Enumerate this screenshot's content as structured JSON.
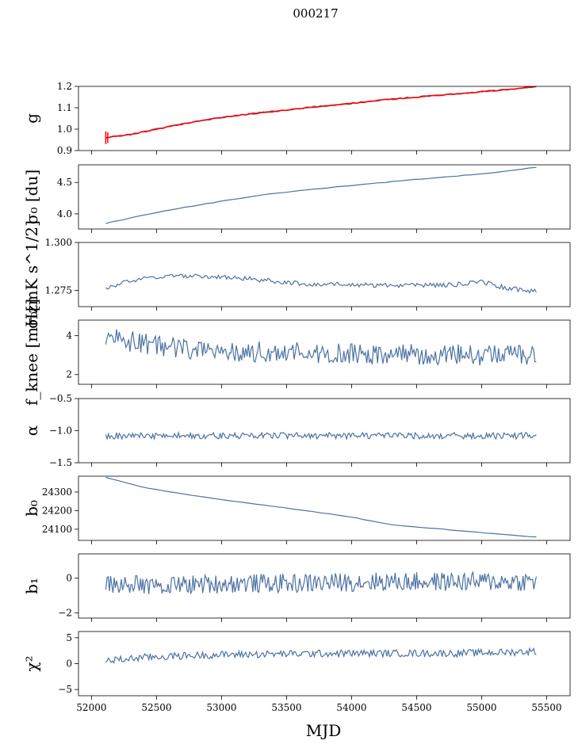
{
  "figure": {
    "title": "000217",
    "xlabel": "MJD"
  },
  "chart_data": [
    {
      "type": "line",
      "ylabel": "g",
      "xlim": [
        51900,
        55680
      ],
      "ylim": [
        0.9,
        1.2
      ],
      "yticks": [
        "0.9",
        "1.0",
        "1.1",
        "1.2"
      ],
      "ytick_values": [
        0.9,
        1.0,
        1.1,
        1.2
      ],
      "series": [
        {
          "color": "#4c72a4",
          "x": [
            52110,
            52300,
            52500,
            52750,
            53000,
            53200,
            53500,
            53800,
            54000,
            54300,
            54600,
            54900,
            55200,
            55420
          ],
          "y": [
            0.96,
            0.975,
            1.0,
            1.03,
            1.055,
            1.07,
            1.09,
            1.11,
            1.12,
            1.14,
            1.155,
            1.17,
            1.185,
            1.2
          ]
        },
        {
          "color": "#ff0000",
          "x": [
            52110,
            52300,
            52500,
            52750,
            53000,
            53200,
            53500,
            53800,
            54000,
            54300,
            54600,
            54900,
            55200,
            55420
          ],
          "y": [
            0.96,
            0.975,
            1.0,
            1.03,
            1.055,
            1.07,
            1.09,
            1.11,
            1.12,
            1.14,
            1.155,
            1.17,
            1.185,
            1.2
          ]
        }
      ]
    },
    {
      "type": "line",
      "ylabel": "σ₀ [du]",
      "xlim": [
        51900,
        55680
      ],
      "ylim": [
        3.76,
        4.78
      ],
      "yticks": [
        "4.0",
        "4.5"
      ],
      "ytick_values": [
        4.0,
        4.5
      ],
      "series": [
        {
          "color": "#4c72a4",
          "x": [
            52110,
            52400,
            52700,
            53000,
            53300,
            53600,
            54000,
            54400,
            54800,
            55100,
            55420
          ],
          "y": [
            3.85,
            3.98,
            4.1,
            4.2,
            4.3,
            4.37,
            4.45,
            4.53,
            4.6,
            4.66,
            4.74
          ]
        }
      ]
    },
    {
      "type": "line",
      "ylabel": "σ₀[mK s^1/2]",
      "xlim": [
        51900,
        55680
      ],
      "ylim": [
        1.2665,
        1.3
      ],
      "yticks": [
        "1.275",
        "1.300"
      ],
      "ytick_values": [
        1.275,
        1.3
      ],
      "series": [
        {
          "color": "#4c72a4",
          "x": [
            52110,
            52300,
            52600,
            53000,
            53300,
            53600,
            54000,
            54400,
            54800,
            55000,
            55200,
            55420
          ],
          "y": [
            1.276,
            1.28,
            1.2825,
            1.282,
            1.2805,
            1.2785,
            1.278,
            1.2775,
            1.278,
            1.2795,
            1.276,
            1.2745
          ]
        }
      ]
    },
    {
      "type": "line",
      "ylabel": "f_knee [mHz]",
      "xlim": [
        51900,
        55680
      ],
      "ylim": [
        1.5,
        4.8
      ],
      "yticks": [
        "2",
        "4"
      ],
      "ytick_values": [
        2,
        4
      ],
      "series": [
        {
          "color": "#4c72a4",
          "x": [
            52110,
            52300,
            52600,
            53000,
            53400,
            53800,
            54200,
            54600,
            55000,
            55420
          ],
          "y": [
            3.9,
            3.7,
            3.4,
            3.25,
            3.15,
            3.1,
            3.05,
            3.0,
            3.0,
            2.95
          ]
        }
      ]
    },
    {
      "type": "line",
      "ylabel": "α",
      "xlim": [
        51900,
        55680
      ],
      "ylim": [
        -1.5,
        -0.5
      ],
      "yticks": [
        "−1.5",
        "−1.0",
        "−0.5"
      ],
      "ytick_values": [
        -1.5,
        -1.0,
        -0.5
      ],
      "series": [
        {
          "color": "#4c72a4",
          "x": [
            52110,
            52600,
            53100,
            53600,
            54100,
            54600,
            55100,
            55420
          ],
          "y": [
            -1.08,
            -1.08,
            -1.08,
            -1.08,
            -1.08,
            -1.08,
            -1.08,
            -1.08
          ]
        }
      ]
    },
    {
      "type": "line",
      "ylabel": "b₀",
      "xlim": [
        51900,
        55680
      ],
      "ylim": [
        24040,
        24385
      ],
      "yticks": [
        "24100",
        "24200",
        "24300"
      ],
      "ytick_values": [
        24100,
        24200,
        24300
      ],
      "series": [
        {
          "color": "#4c72a4",
          "x": [
            52110,
            52400,
            52700,
            53000,
            53300,
            53700,
            54000,
            54300,
            54700,
            55000,
            55200,
            55420
          ],
          "y": [
            24378,
            24325,
            24290,
            24260,
            24232,
            24195,
            24165,
            24125,
            24100,
            24082,
            24070,
            24058
          ]
        }
      ]
    },
    {
      "type": "line",
      "ylabel": "b₁",
      "xlim": [
        51900,
        55680
      ],
      "ylim": [
        -2.3,
        1.4
      ],
      "yticks": [
        "−2",
        "0"
      ],
      "ytick_values": [
        -2,
        0
      ],
      "series": [
        {
          "color": "#4c72a4",
          "x": [
            52110,
            52600,
            53100,
            53600,
            54100,
            54600,
            55100,
            55420
          ],
          "y": [
            -0.4,
            -0.4,
            -0.3,
            -0.3,
            -0.2,
            -0.2,
            -0.2,
            -0.2
          ]
        }
      ]
    },
    {
      "type": "line",
      "ylabel": "χ²",
      "xlim": [
        51900,
        55680
      ],
      "ylim": [
        -6.2,
        6.2
      ],
      "yticks": [
        "−5",
        "0",
        "5"
      ],
      "ytick_values": [
        -5,
        0,
        5
      ],
      "xticks": [
        "52000",
        "52500",
        "53000",
        "53500",
        "54000",
        "54500",
        "55000",
        "55500"
      ],
      "xtick_values": [
        52000,
        52500,
        53000,
        53500,
        54000,
        54500,
        55000,
        55500
      ],
      "series": [
        {
          "color": "#4c72a4",
          "x": [
            52110,
            52400,
            52800,
            53200,
            53600,
            54000,
            54400,
            54800,
            55200,
            55420
          ],
          "y": [
            0.5,
            1.2,
            1.6,
            1.8,
            1.9,
            2.0,
            2.0,
            2.0,
            2.2,
            2.4
          ]
        }
      ]
    }
  ]
}
